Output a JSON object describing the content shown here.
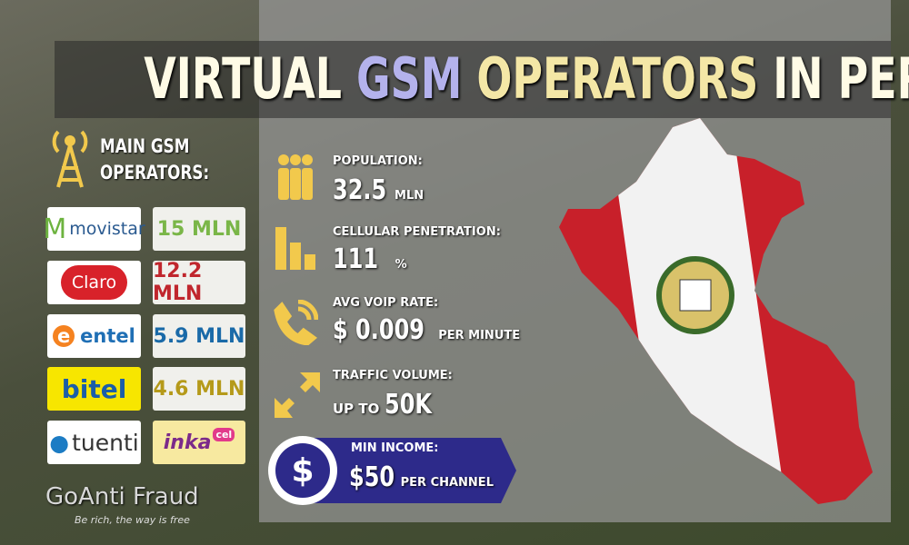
{
  "title": [
    "VIRTUAL",
    "GSM",
    "OPERATORS",
    "IN PERU"
  ],
  "operators_heading": [
    "MAIN GSM",
    "OPERATORS:"
  ],
  "operators": [
    {
      "name": "movistar",
      "subscribers": "15 MLN"
    },
    {
      "name": "Claro",
      "subscribers": "12.2 MLN"
    },
    {
      "name": "entel",
      "subscribers": "5.9 MLN"
    },
    {
      "name": "bitel",
      "subscribers": "4.6 MLN"
    },
    {
      "name": "tuenti"
    },
    {
      "name": [
        "inka",
        "cel"
      ]
    }
  ],
  "stats": [
    {
      "label": "POPULATION:",
      "value": "32.5",
      "unit": "MLN"
    },
    {
      "label": "CELLULAR PENETRATION:",
      "value": "111",
      "unit": "%"
    },
    {
      "label": "AVG VOIP RATE:",
      "value": "$ 0.009",
      "unit": "PER MINUTE"
    },
    {
      "label": "TRAFFIC VOLUME:",
      "prefix": "UP TO",
      "value": "50K"
    },
    {
      "label": "MIN INCOME:",
      "value": "$50",
      "unit": "PER CHANNEL"
    }
  ],
  "brand": {
    "name": "GoAnti Fraud",
    "slogan": "Be rich, the way is free"
  }
}
